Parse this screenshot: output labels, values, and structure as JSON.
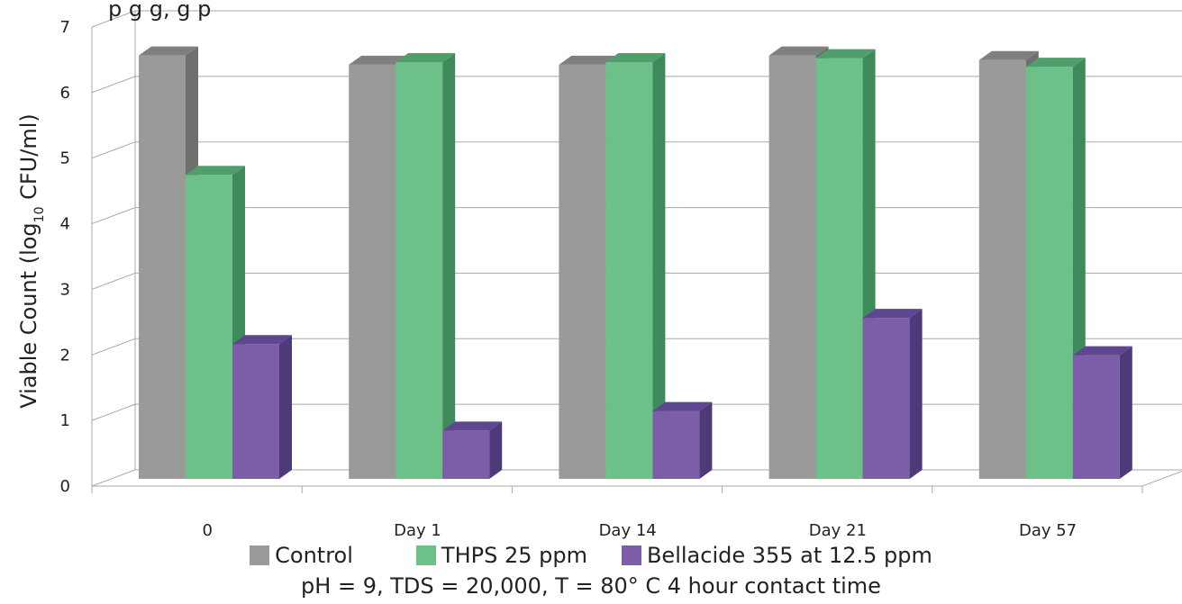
{
  "chart_data": {
    "type": "bar",
    "top_text": "p                                                                                  g           g,  g        p",
    "ylabel_main": "Viable Count (log",
    "ylabel_sub": "10",
    "ylabel_tail": " CFU/ml)",
    "ylim": [
      0,
      7
    ],
    "yticks": [
      "0",
      "1",
      "2",
      "3",
      "4",
      "5",
      "6",
      "7"
    ],
    "categories": [
      "0",
      "Day 1",
      "Day 14",
      "Day 21",
      "Day 57"
    ],
    "series": [
      {
        "name": "Control",
        "values": [
          6.62,
          6.48,
          6.48,
          6.62,
          6.55
        ],
        "color": "#9a9b99",
        "side": "#6e706e",
        "top": "#7e807e"
      },
      {
        "name": "THPS 25 ppm",
        "values": [
          4.8,
          6.52,
          6.52,
          6.58,
          6.45
        ],
        "color": "#6bc187",
        "side": "#3f8a5a",
        "top": "#4f9e6b"
      },
      {
        "name": "Bellacide 355 at 12.5 ppm",
        "values": [
          2.22,
          0.9,
          1.2,
          2.62,
          2.05
        ],
        "color": "#7b5ea7",
        "side": "#4d3a78",
        "top": "#5e4790"
      }
    ],
    "grid": true,
    "legend": "bottom",
    "caption": "pH = 9, TDS = 20,000, T = 80° C 4 hour contact time"
  }
}
